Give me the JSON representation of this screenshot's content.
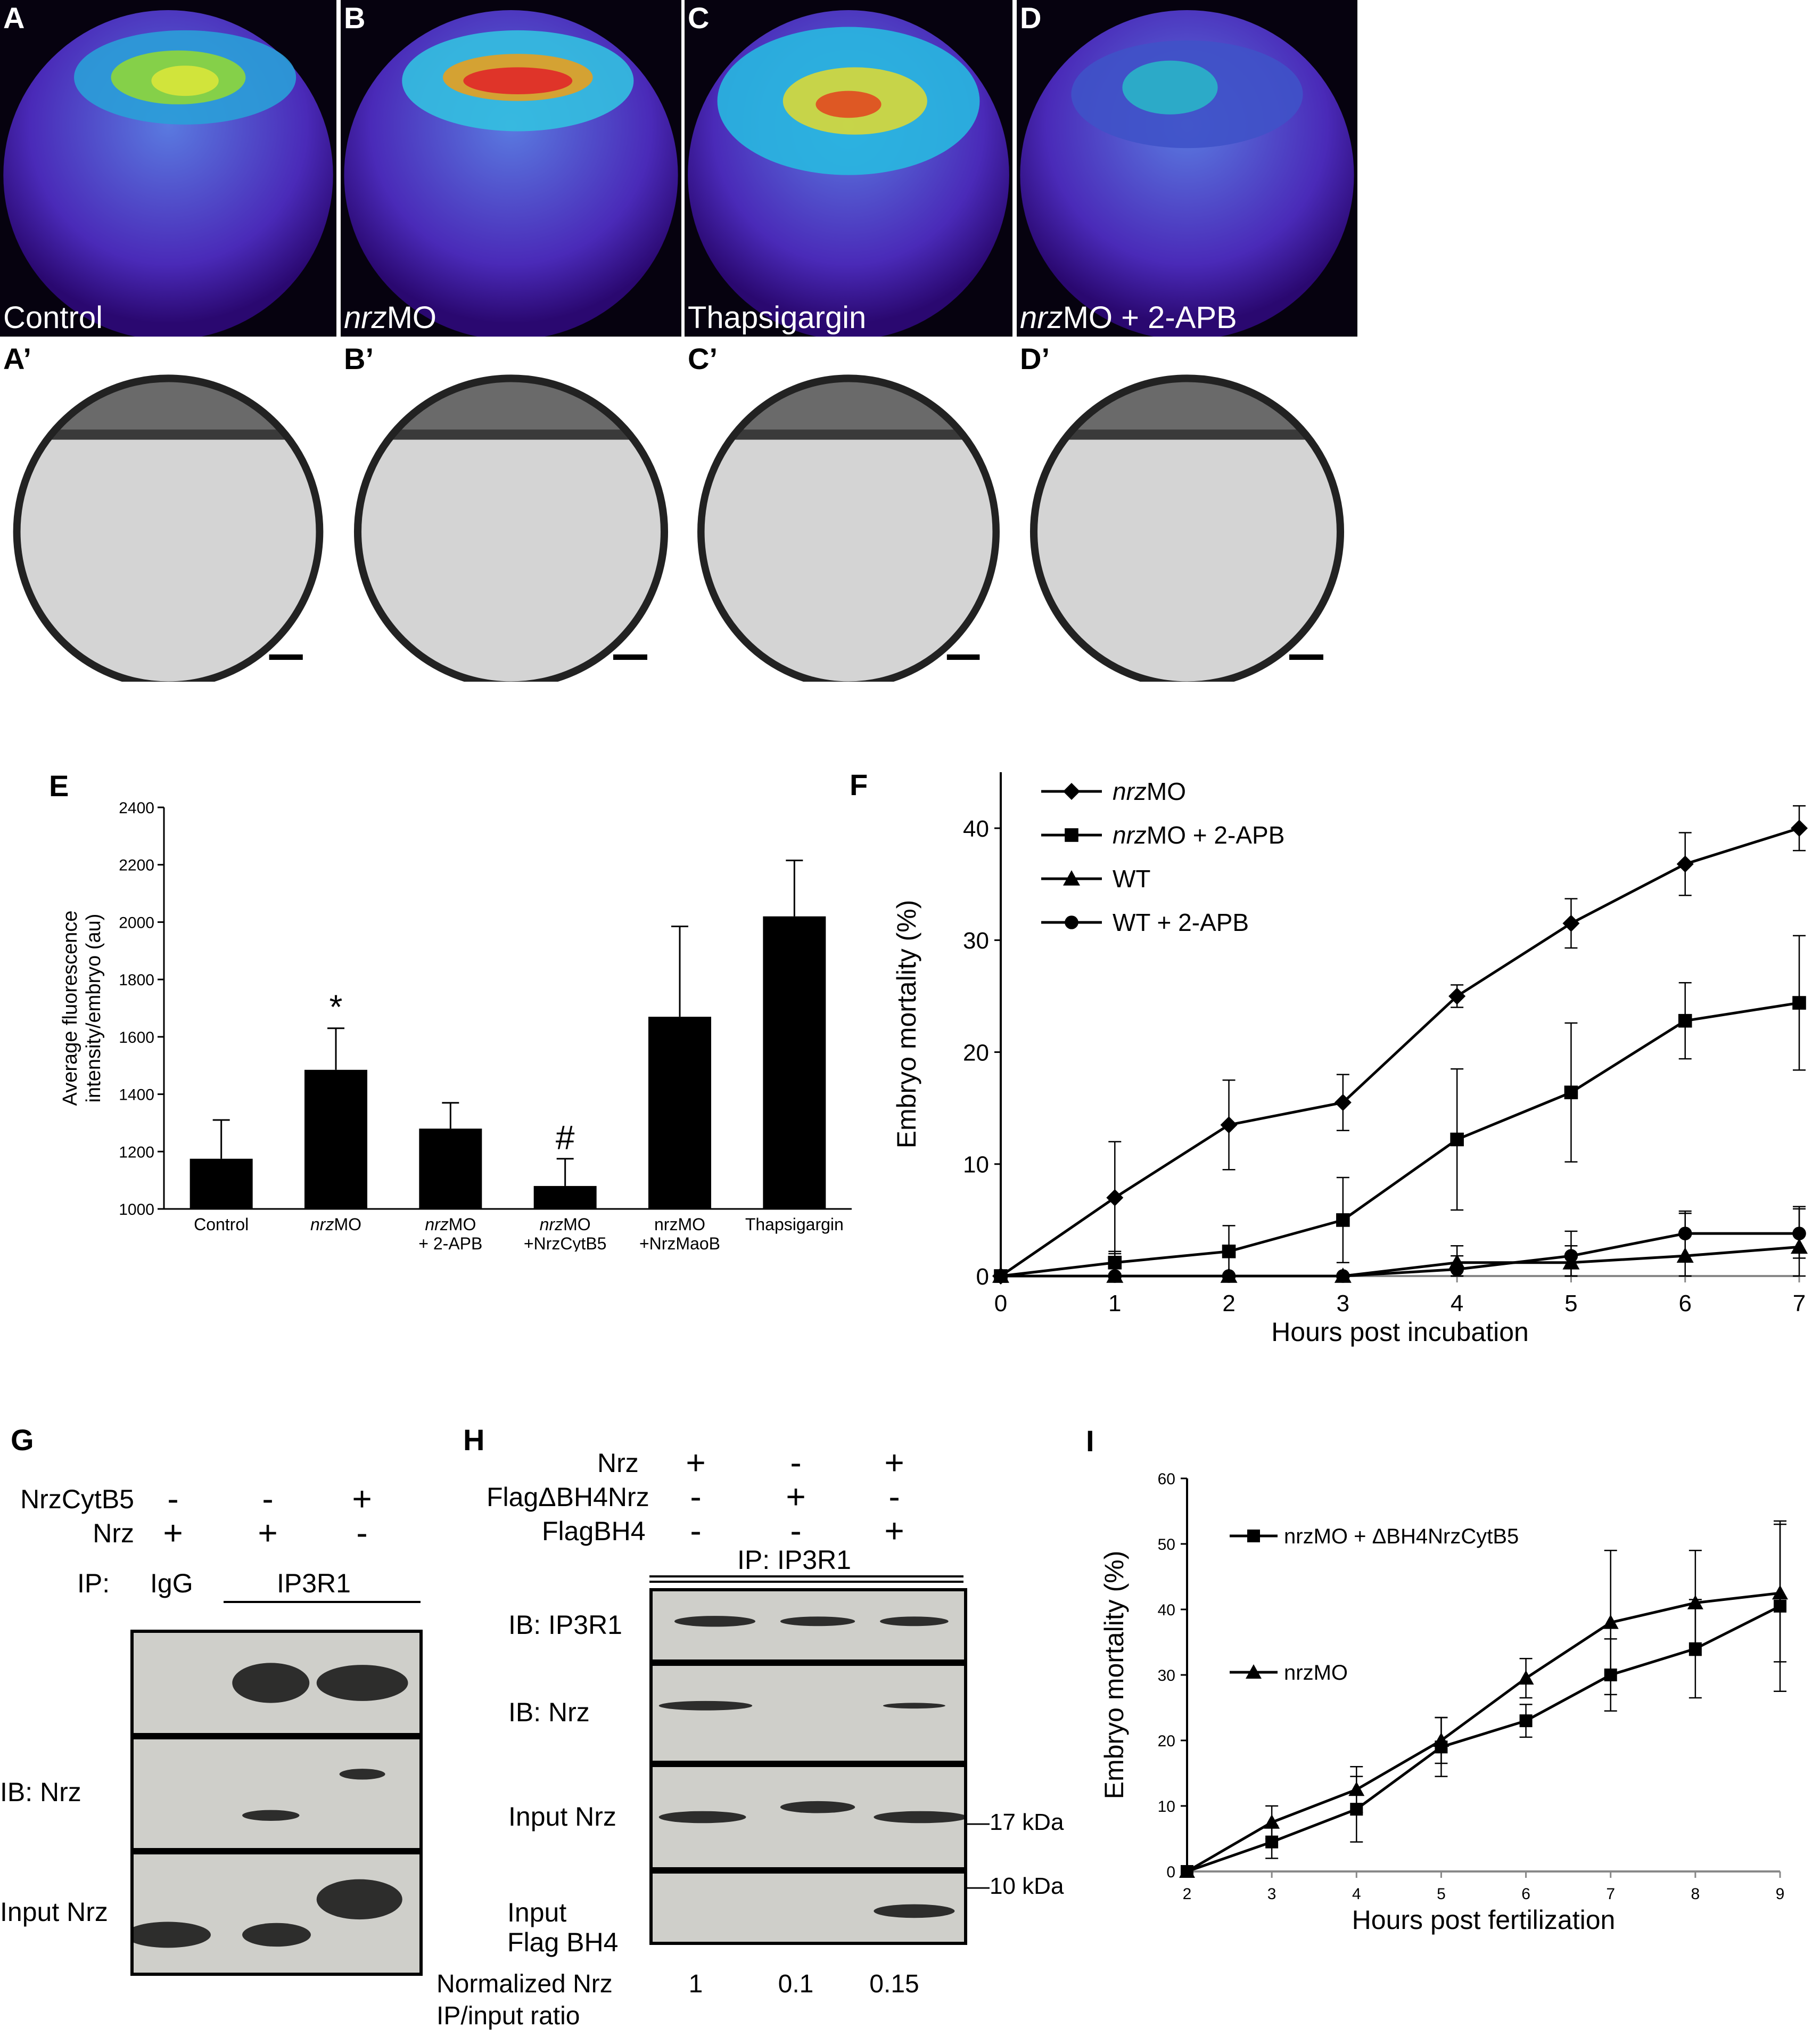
{
  "images": {
    "top_row": [
      {
        "letter": "A",
        "label": "Control"
      },
      {
        "letter": "B",
        "label_italic": "nrz",
        "label_rest": "MO"
      },
      {
        "letter": "C",
        "label": "Thapsigargin"
      },
      {
        "letter": "D",
        "label_italic": "nrz",
        "label_rest": "MO + 2-APB"
      }
    ],
    "bottom_row": [
      {
        "letter": "A’"
      },
      {
        "letter": "B’"
      },
      {
        "letter": "C’"
      },
      {
        "letter": "D’"
      }
    ]
  },
  "chart_data": [
    {
      "panel": "E",
      "type": "bar",
      "ylabel_line1": "Average fluorescence",
      "ylabel_line2": "intensity/embryo (au)",
      "ylim": [
        1000,
        2400
      ],
      "yticks": [
        "1000",
        "1200",
        "1400",
        "1600",
        "1800",
        "2000",
        "2200",
        "2400"
      ],
      "categories": [
        {
          "italic": "",
          "line1": "Control",
          "line2": ""
        },
        {
          "italic": "nrz",
          "line1": "MO",
          "line2": ""
        },
        {
          "italic": "nrz",
          "line1": "MO",
          "line2": "+ 2-APB"
        },
        {
          "italic": "nrz",
          "line1": "MO",
          "line2": "+NrzCytB5"
        },
        {
          "italic": "",
          "line1": "nrzMO",
          "line2": "+NrzMaoB"
        },
        {
          "italic": "",
          "line1": "Thapsigargin",
          "line2": ""
        }
      ],
      "values": [
        1175,
        1485,
        1280,
        1080,
        1670,
        2020
      ],
      "errors": [
        135,
        145,
        90,
        95,
        315,
        195
      ],
      "annotations": [
        "",
        "*",
        "",
        "#",
        "",
        ""
      ],
      "color": "#000000"
    },
    {
      "panel": "F",
      "type": "line",
      "xlabel": "Hours post incubation",
      "ylabel": "Embryo mortality (%)",
      "x": [
        0,
        1,
        2,
        3,
        4,
        5,
        6,
        7
      ],
      "xlim": [
        0,
        7
      ],
      "ylim": [
        0,
        45
      ],
      "yticks": [
        0,
        10,
        20,
        30,
        40
      ],
      "series": [
        {
          "name_italic": "nrz",
          "name_rest": "MO",
          "marker": "diamond",
          "values": [
            0,
            7,
            13.5,
            15.5,
            25,
            31.5,
            36.8,
            40
          ],
          "errors": [
            0,
            5,
            4,
            2.5,
            1,
            2.2,
            2.8,
            2
          ]
        },
        {
          "name_italic": "nrz",
          "name_rest": "MO + 2-APB",
          "marker": "square",
          "values": [
            0,
            1.2,
            2.2,
            5,
            12.2,
            16.4,
            22.8,
            24.4
          ],
          "errors": [
            0,
            1,
            2.3,
            3.8,
            6.3,
            6.2,
            3.4,
            6
          ]
        },
        {
          "name_italic": "",
          "name_rest": "WT",
          "marker": "triangle",
          "values": [
            0,
            0,
            0,
            0,
            1.2,
            1.2,
            1.8,
            2.6
          ],
          "errors": [
            0,
            0,
            0,
            0,
            1.5,
            1.5,
            3.8,
            3.6
          ]
        },
        {
          "name_italic": "",
          "name_rest": "WT + 2-APB",
          "marker": "circle",
          "values": [
            0,
            0,
            0,
            0,
            0.6,
            1.8,
            3.8,
            3.8
          ],
          "errors": [
            0,
            0,
            0,
            0,
            1.2,
            2.2,
            2,
            2.2
          ]
        }
      ]
    },
    {
      "panel": "I",
      "type": "line",
      "xlabel": "Hours post  fertilization",
      "ylabel": "Embryo mortality (%)",
      "x": [
        2,
        3,
        4,
        5,
        6,
        7,
        8,
        9
      ],
      "xlim": [
        2,
        9
      ],
      "ylim": [
        0,
        60
      ],
      "yticks": [
        0,
        10,
        20,
        30,
        40,
        50,
        60
      ],
      "series": [
        {
          "name": "nrzMO + ΔBH4NrzCytB5",
          "marker": "square",
          "values": [
            0,
            4.5,
            9.5,
            19,
            23,
            30,
            34,
            40.5
          ],
          "errors": [
            0,
            2.5,
            5,
            4.5,
            2.5,
            5.5,
            7.5,
            13
          ]
        },
        {
          "name": "nrzMO",
          "marker": "triangle",
          "values": [
            0,
            7.5,
            12.5,
            20,
            29.5,
            38,
            41,
            42.5
          ],
          "errors": [
            0,
            2.5,
            3.5,
            3.5,
            3,
            11,
            8,
            10.5
          ]
        }
      ]
    }
  ],
  "panel_g": {
    "letter": "G",
    "rows": [
      {
        "label": "NrzCytB5",
        "signs": [
          "-",
          "-",
          "+"
        ]
      },
      {
        "label": "Nrz",
        "signs": [
          "+",
          "+",
          "-"
        ]
      }
    ],
    "ip_label": "IP:",
    "ip_igg": "IgG",
    "ip_ip3r1": "IP3R1",
    "blot_labels": [
      "",
      "IB: Nrz",
      "Input Nrz"
    ]
  },
  "panel_h": {
    "letter": "H",
    "rows": [
      {
        "label": "Nrz",
        "signs": [
          "+",
          "-",
          "+"
        ]
      },
      {
        "label": "FlagΔBH4Nrz",
        "signs": [
          "-",
          "+",
          "-"
        ]
      },
      {
        "label": "FlagBH4",
        "signs": [
          "-",
          "-",
          "+"
        ]
      }
    ],
    "ip_label": "IP:  IP3R1",
    "blot_labels": [
      "IB: IP3R1",
      "IB: Nrz",
      "Input Nrz",
      "Input",
      "Flag BH4"
    ],
    "markers": [
      "17 kDa",
      "10 kDa"
    ],
    "ratio_label_line1": "Normalized Nrz",
    "ratio_label_line2": "IP/input ratio",
    "ratios": [
      "1",
      "0.1",
      "0.15"
    ]
  },
  "panel_letters": {
    "e": "E",
    "f": "F",
    "i": "I"
  }
}
